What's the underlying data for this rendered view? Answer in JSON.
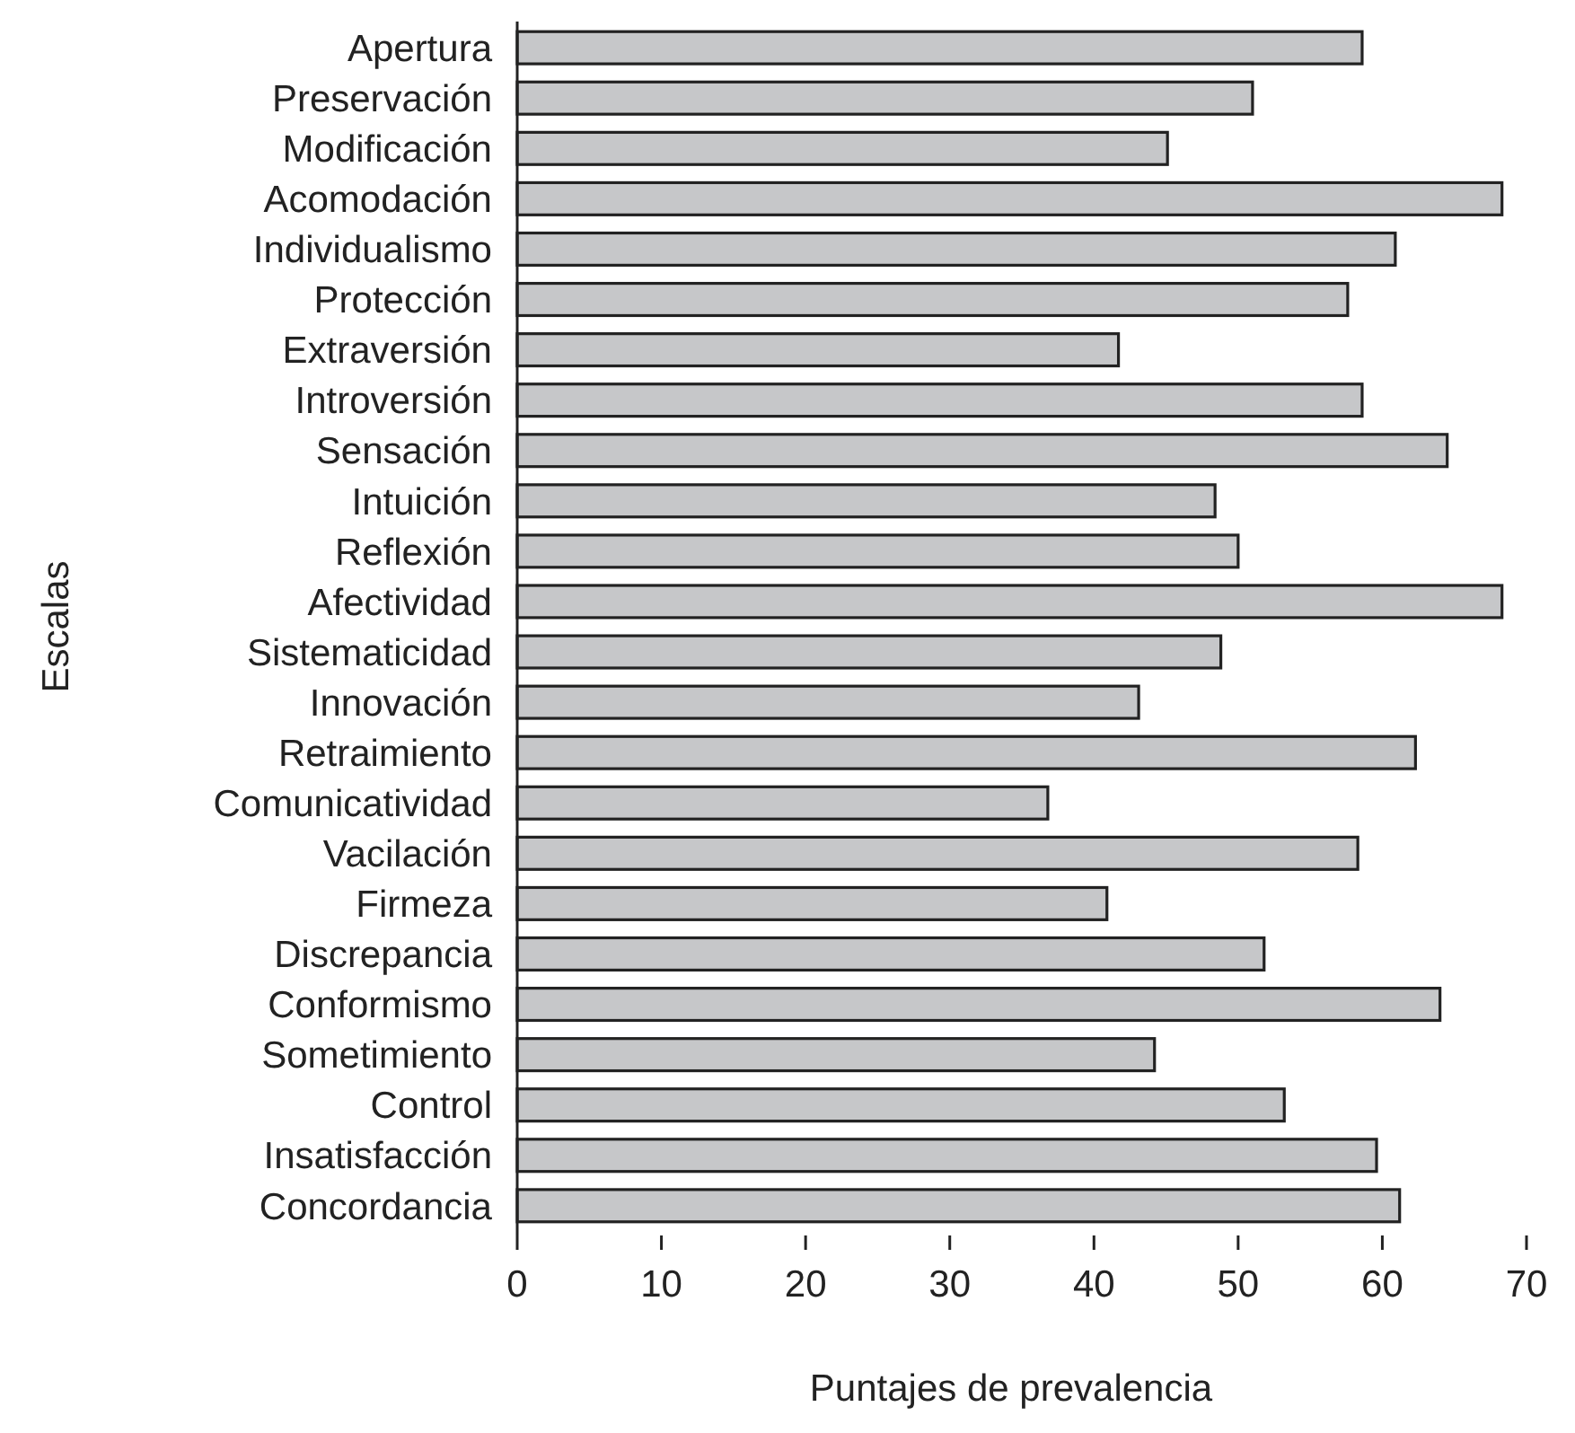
{
  "chart_data": {
    "type": "bar",
    "orientation": "horizontal",
    "xlabel": "Puntajes de prevalencia",
    "ylabel": "Escalas",
    "categories": [
      "Apertura",
      "Preservación",
      "Modificación",
      "Acomodación",
      "Individualismo",
      "Protección",
      "Extraversión",
      "Introversión",
      "Sensación",
      "Intuición",
      "Reflexión",
      "Afectividad",
      "Sistematicidad",
      "Innovación",
      "Retraimiento",
      "Comunicatividad",
      "Vacilación",
      "Firmeza",
      "Discrepancia",
      "Conformismo",
      "Sometimiento",
      "Control",
      "Insatisfacción",
      "Concordancia"
    ],
    "values": [
      58.6,
      51.0,
      45.1,
      68.3,
      60.9,
      57.6,
      41.7,
      58.6,
      64.5,
      48.4,
      50.0,
      68.3,
      48.8,
      43.1,
      62.3,
      36.8,
      58.3,
      40.9,
      51.8,
      64.0,
      44.2,
      53.2,
      59.6,
      61.2
    ],
    "color": "#c6c7c9",
    "xlim": [
      0,
      70
    ],
    "xticks": [
      0,
      10,
      20,
      30,
      40,
      50,
      60,
      70
    ],
    "grid": false
  }
}
